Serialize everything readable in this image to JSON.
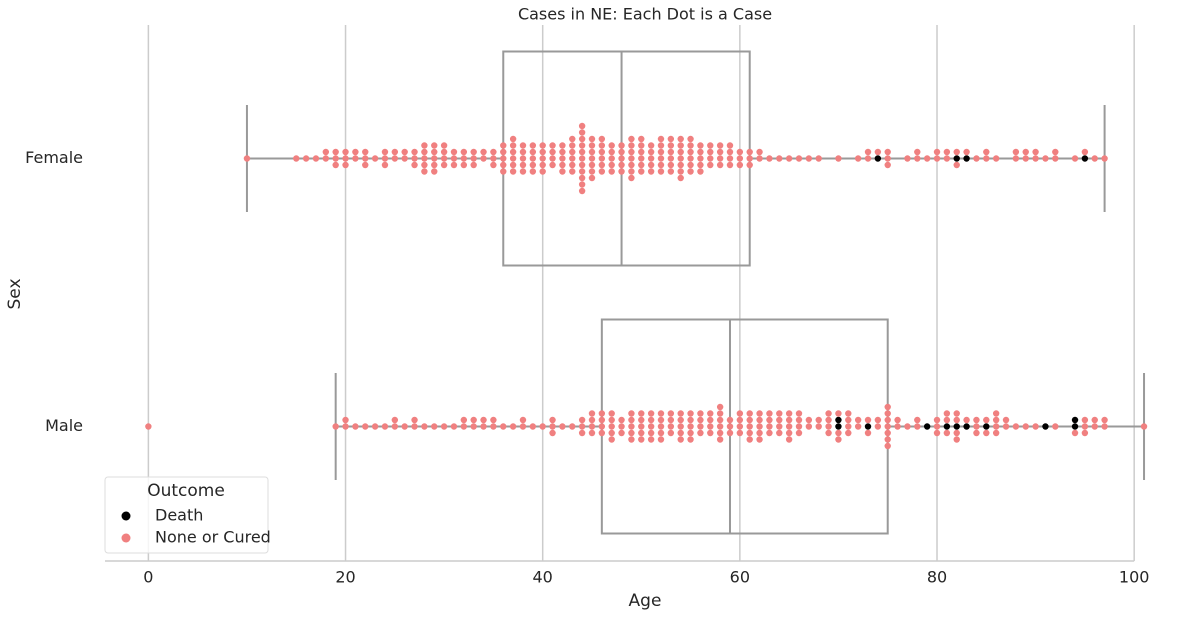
{
  "chart_data": {
    "type": "box-swarm",
    "title": "Cases in NE: Each Dot is a Case",
    "x_label": "Age",
    "y_label": "Sex",
    "categories": [
      "Female",
      "Male"
    ],
    "xlim": [
      -4.4,
      101.2
    ],
    "xticks": [
      0,
      20,
      40,
      60,
      80,
      100
    ],
    "grid": true,
    "legend_title": "Outcome",
    "legend_position": "lower left",
    "boxes": [
      {
        "whislo": 10,
        "q1": 36,
        "med": 48,
        "q3": 61,
        "whishi": 97
      },
      {
        "whislo": 19,
        "q1": 46,
        "med": 59,
        "q3": 75,
        "whishi": 101
      }
    ],
    "box_color": "#999999",
    "series": [
      {
        "name": "Death",
        "color": "#000000",
        "ages": [
          [
            74,
            82,
            83,
            95
          ],
          [
            70,
            73,
            79,
            81,
            82,
            83,
            85,
            91,
            94
          ]
        ],
        "counts": [
          [
            1,
            1,
            1,
            1
          ],
          [
            2,
            1,
            1,
            1,
            1,
            1,
            1,
            1,
            2
          ]
        ]
      },
      {
        "name": "None or Cured",
        "color": "#f08080",
        "ages": [
          [
            10,
            15,
            16,
            17,
            18,
            19,
            20,
            21,
            22,
            23,
            24,
            25,
            26,
            27,
            28,
            29,
            30,
            31,
            32,
            33,
            34,
            35,
            36,
            37,
            38,
            39,
            40,
            41,
            42,
            43,
            44,
            45,
            46,
            47,
            48,
            49,
            50,
            51,
            52,
            53,
            54,
            55,
            56,
            57,
            58,
            59,
            60,
            61,
            62,
            63,
            64,
            65,
            66,
            67,
            68,
            70,
            72,
            73,
            74,
            75,
            77,
            78,
            79,
            80,
            81,
            82,
            83,
            84,
            85,
            86,
            88,
            89,
            90,
            91,
            92,
            94,
            95,
            96,
            97
          ],
          [
            0,
            19,
            20,
            21,
            22,
            23,
            24,
            25,
            26,
            27,
            28,
            29,
            30,
            31,
            32,
            33,
            34,
            35,
            36,
            37,
            38,
            39,
            40,
            41,
            42,
            43,
            44,
            45,
            46,
            47,
            48,
            49,
            50,
            51,
            52,
            53,
            54,
            55,
            56,
            57,
            58,
            59,
            60,
            61,
            62,
            63,
            64,
            65,
            66,
            67,
            68,
            69,
            70,
            71,
            72,
            73,
            74,
            75,
            76,
            77,
            78,
            80,
            81,
            82,
            83,
            84,
            85,
            86,
            87,
            88,
            89,
            90,
            92,
            94,
            95,
            96,
            97,
            101
          ]
        ],
        "counts": [
          [
            1,
            1,
            1,
            1,
            2,
            3,
            3,
            2,
            3,
            1,
            3,
            2,
            2,
            3,
            5,
            5,
            4,
            3,
            3,
            3,
            2,
            3,
            5,
            6,
            5,
            5,
            5,
            4,
            5,
            6,
            11,
            7,
            6,
            5,
            5,
            7,
            6,
            5,
            6,
            6,
            7,
            6,
            5,
            4,
            4,
            4,
            3,
            3,
            2,
            1,
            1,
            1,
            1,
            1,
            1,
            1,
            1,
            2,
            1,
            3,
            1,
            2,
            1,
            2,
            2,
            2,
            1,
            1,
            2,
            1,
            2,
            2,
            2,
            1,
            2,
            1,
            1,
            1,
            1
          ],
          [
            1,
            1,
            2,
            1,
            1,
            1,
            1,
            2,
            1,
            2,
            1,
            1,
            1,
            1,
            2,
            2,
            2,
            2,
            1,
            1,
            2,
            1,
            1,
            3,
            1,
            1,
            3,
            4,
            4,
            5,
            3,
            5,
            5,
            5,
            5,
            4,
            5,
            5,
            4,
            4,
            6,
            3,
            4,
            5,
            5,
            4,
            4,
            5,
            4,
            2,
            2,
            4,
            3,
            4,
            2,
            2,
            2,
            7,
            2,
            1,
            2,
            3,
            3,
            4,
            1,
            3,
            2,
            4,
            2,
            1,
            1,
            1,
            1,
            1,
            3,
            2,
            2,
            1
          ]
        ]
      }
    ]
  }
}
